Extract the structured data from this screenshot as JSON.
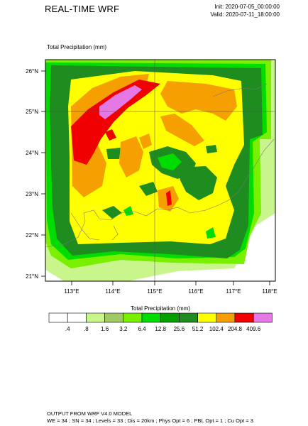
{
  "header": {
    "title": "REAL-TIME WRF",
    "init": "Init: 2020-07-05_00:00:00",
    "valid": "Valid: 2020-07-11_18:00:00"
  },
  "map": {
    "field_label": "Total Precipitation   (mm)",
    "lat_ticks": [
      "26°N",
      "25°N",
      "24°N",
      "23°N",
      "22°N",
      "21°N"
    ],
    "lon_ticks": [
      "113°E",
      "114°E",
      "115°E",
      "116°E",
      "117°E",
      "118°E"
    ]
  },
  "legend": {
    "title": "Total Precipitation  (mm)",
    "levels": [
      ".4",
      ".8",
      "1.6",
      "3.2",
      "6.4",
      "12.8",
      "25.6",
      "51.2",
      "102.4",
      "204.8",
      "409.6"
    ],
    "colors": [
      "#ffffff",
      "#ffffff",
      "#c8f58c",
      "#a0c864",
      "#78f000",
      "#00dc00",
      "#00a000",
      "#1e8c1e",
      "#ffff00",
      "#f5a000",
      "#f00000",
      "#e678e6"
    ]
  },
  "footer": {
    "line1": "OUTPUT FROM WRF V4.0 MODEL",
    "line2": "WE = 34 ; SN = 34 ; Levels = 33 ; Dis = 20km ; Phys Opt = 6 ; PBL Opt = 1 ; Cu Opt = 3"
  }
}
